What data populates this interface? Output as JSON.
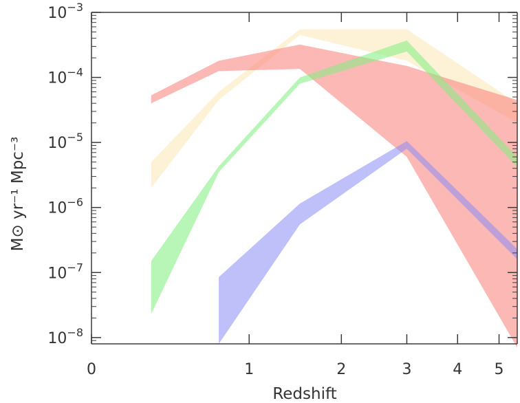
{
  "chart_data": {
    "type": "area",
    "xlabel": "Redshift",
    "ylabel": "M⊙ yr⁻¹ Mpc⁻³",
    "yscale": "log",
    "xscale": "log(1+z)",
    "xlim": [
      0,
      5.5
    ],
    "ylim": [
      8e-09,
      0.001
    ],
    "x_ticks": [
      {
        "value": 0,
        "label": "0"
      },
      {
        "value": 1,
        "label": "1"
      },
      {
        "value": 2,
        "label": "2"
      },
      {
        "value": 3,
        "label": "3"
      },
      {
        "value": 4,
        "label": "4"
      },
      {
        "value": 5,
        "label": "5"
      }
    ],
    "y_ticks": [
      {
        "value": 1e-08,
        "base": "10",
        "exp": "−8"
      },
      {
        "value": 1e-07,
        "base": "10",
        "exp": "−7"
      },
      {
        "value": 1e-06,
        "base": "10",
        "exp": "−6"
      },
      {
        "value": 1e-05,
        "base": "10",
        "exp": "−5"
      },
      {
        "value": 0.0001,
        "base": "10",
        "exp": "−4"
      },
      {
        "value": 0.001,
        "base": "10",
        "exp": "−3"
      }
    ],
    "grid": false,
    "series": [
      {
        "color": "#fde7b4",
        "x": [
          0.3,
          0.75,
          1.5,
          3.0,
          5.5
        ],
        "upper": [
          5e-06,
          6e-05,
          0.00055,
          0.00055,
          4e-05
        ],
        "lower": [
          2e-06,
          4.5e-05,
          0.00045,
          0.00018,
          2e-05
        ]
      },
      {
        "color": "#fa7e78",
        "x": [
          0.3,
          0.75,
          1.5,
          3.0,
          5.5
        ],
        "upper": [
          5.3e-05,
          0.00018,
          0.00032,
          0.00015,
          4.5e-05
        ],
        "lower": [
          4e-05,
          0.000125,
          0.000135,
          6e-06,
          7e-09
        ]
      },
      {
        "color": "#7dee7d",
        "x": [
          0.3,
          0.75,
          1.5,
          3.0,
          5.5
        ],
        "upper": [
          1.5e-07,
          4.3e-06,
          0.0001,
          0.00037,
          6e-06
        ],
        "lower": [
          2.3e-08,
          3.5e-06,
          8e-05,
          0.00025,
          4.2e-06
        ]
      },
      {
        "color": "#8b8cf6",
        "x": [
          0.75,
          1.5,
          3.0,
          5.5
        ],
        "upper": [
          8.5e-08,
          1.15e-06,
          1.05e-05,
          2.3e-07
        ],
        "lower": [
          8e-09,
          5.5e-07,
          8e-06,
          1.6e-07
        ]
      }
    ]
  },
  "colors": {
    "axis": "#3a3a3a",
    "text": "#333333"
  }
}
